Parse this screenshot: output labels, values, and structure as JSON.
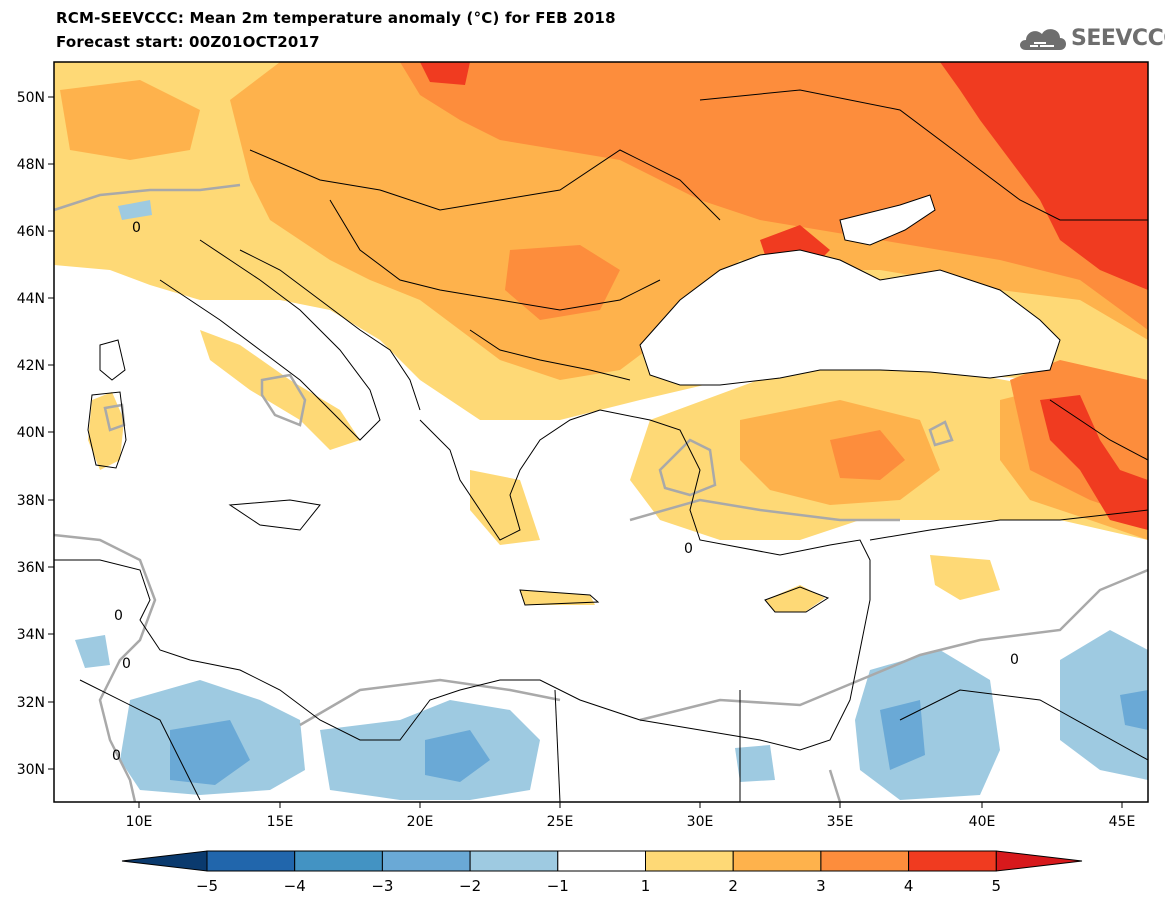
{
  "header": {
    "title": "RCM-SEEVCCC: Mean 2m temperature anomaly (°C) for FEB 2018",
    "subtitle": "Forecast start: 00Z01OCT2017",
    "logo_text": "SEEVCCC"
  },
  "map": {
    "lat_labels": [
      "50N",
      "48N",
      "46N",
      "44N",
      "42N",
      "40N",
      "38N",
      "36N",
      "34N",
      "32N",
      "30N"
    ],
    "lon_labels": [
      "10E",
      "15E",
      "20E",
      "25E",
      "30E",
      "35E",
      "40E",
      "45E"
    ],
    "contour_label": "0"
  },
  "colorbar": {
    "labels": [
      "−5",
      "−4",
      "−3",
      "−2",
      "−1",
      "1",
      "2",
      "3",
      "4",
      "5"
    ],
    "colors": [
      "#0a3a6e",
      "#2166ac",
      "#4393c3",
      "#6aa9d6",
      "#9ecae1",
      "#ffffff",
      "#fed976",
      "#feb24c",
      "#fd8d3c",
      "#f03b20",
      "#d7191c"
    ]
  }
}
